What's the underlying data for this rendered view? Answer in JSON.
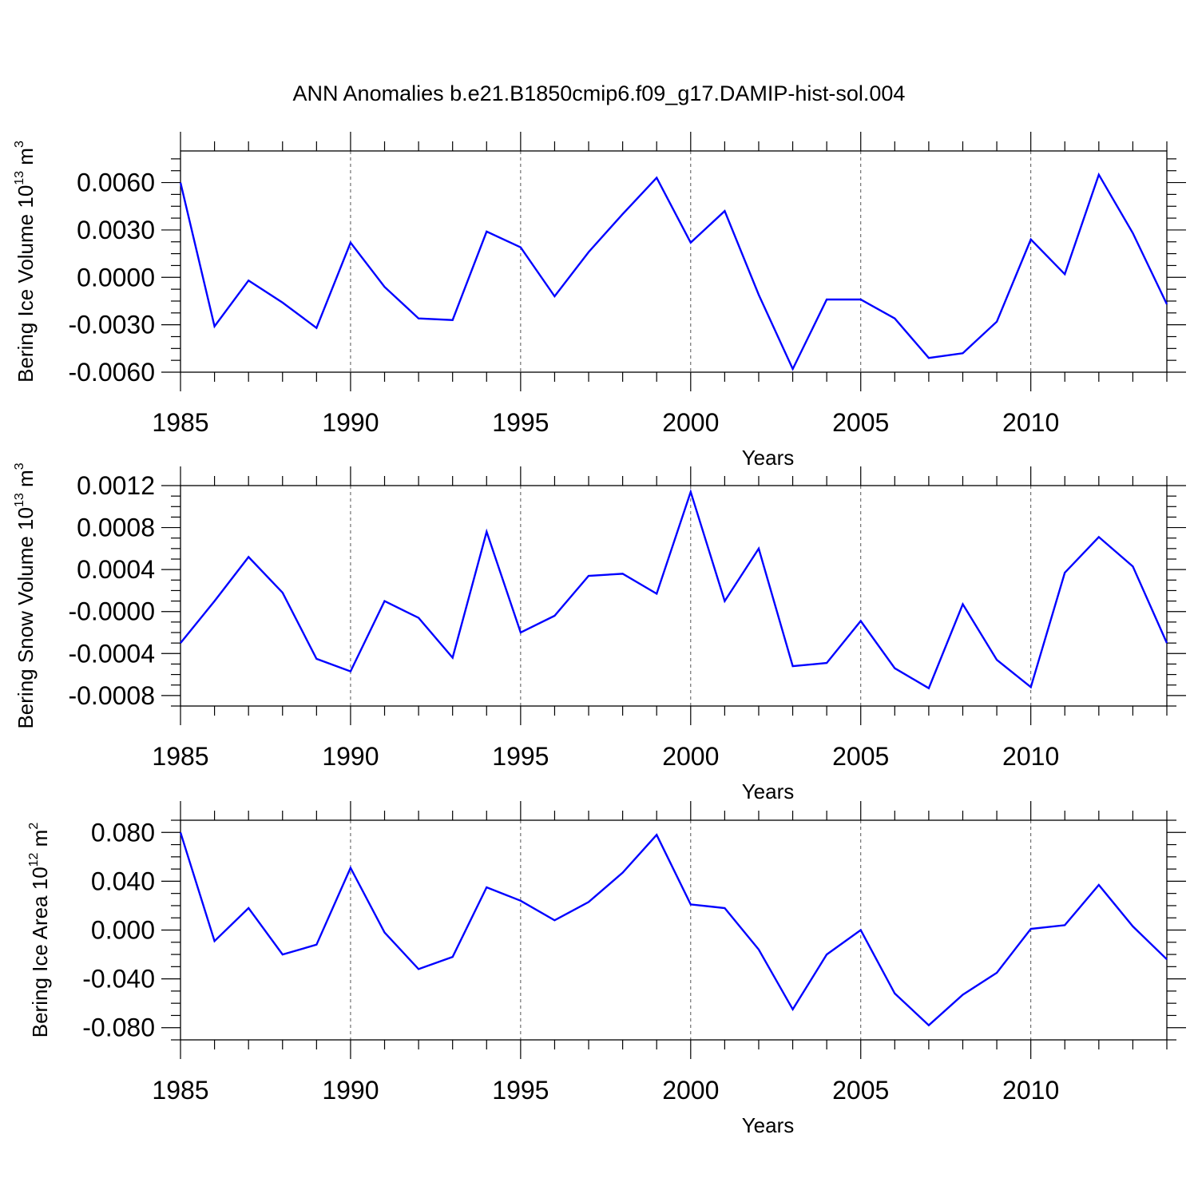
{
  "figure": {
    "title": "ANN Anomalies b.e21.B1850cmip6.f09_g17.DAMIP-hist-sol.004",
    "line_color": "#0000ff"
  },
  "chart_data": [
    {
      "type": "line",
      "xlabel": "Years",
      "ylabel": {
        "base": "Bering Ice Volume 10",
        "exp": "13",
        "unit": " m",
        "unit_exp": "3"
      },
      "xlim": [
        1985,
        2014
      ],
      "ylim": [
        -0.006,
        0.008
      ],
      "grid": "vertical dashed at labeled years",
      "x_ticks": [
        1985,
        1990,
        1995,
        2000,
        2005,
        2010
      ],
      "x_tick_labels": [
        "1985",
        "1990",
        "1995",
        "2000",
        "2005",
        "2010"
      ],
      "y_ticks": [
        0.006,
        0.003,
        0.0,
        -0.003,
        -0.006
      ],
      "y_tick_labels": [
        "0.0060",
        "0.0030",
        "0.0000",
        "-0.0030",
        "-0.0060"
      ],
      "x": [
        1985,
        1986,
        1987,
        1988,
        1989,
        1990,
        1991,
        1992,
        1993,
        1994,
        1995,
        1996,
        1997,
        1998,
        1999,
        2000,
        2001,
        2002,
        2003,
        2004,
        2005,
        2006,
        2007,
        2008,
        2009,
        2010,
        2011,
        2012,
        2013,
        2014
      ],
      "values": [
        0.006,
        -0.0031,
        -0.0002,
        -0.0016,
        -0.0032,
        0.0022,
        -0.0006,
        -0.0026,
        -0.0027,
        0.0029,
        0.0019,
        -0.0012,
        0.0016,
        0.004,
        0.0063,
        0.0022,
        0.0042,
        -0.0011,
        -0.0058,
        -0.0014,
        -0.0014,
        -0.0026,
        -0.0051,
        -0.0048,
        -0.0028,
        0.0024,
        0.0002,
        0.0065,
        0.0028,
        -0.0017
      ]
    },
    {
      "type": "line",
      "xlabel": "Years",
      "ylabel": {
        "base": "Bering Snow Volume 10",
        "exp": "13",
        "unit": " m",
        "unit_exp": "3"
      },
      "xlim": [
        1985,
        2014
      ],
      "ylim": [
        -0.0009,
        0.0012
      ],
      "grid": "vertical dashed at labeled years",
      "x_ticks": [
        1985,
        1990,
        1995,
        2000,
        2005,
        2010
      ],
      "x_tick_labels": [
        "1985",
        "1990",
        "1995",
        "2000",
        "2005",
        "2010"
      ],
      "y_ticks": [
        0.0012,
        0.0008,
        0.0004,
        0.0,
        -0.0004,
        -0.0008
      ],
      "y_tick_labels": [
        "0.0012",
        "0.0008",
        "0.0004",
        "-0.0000",
        "-0.0004",
        "-0.0008"
      ],
      "x": [
        1985,
        1986,
        1987,
        1988,
        1989,
        1990,
        1991,
        1992,
        1993,
        1994,
        1995,
        1996,
        1997,
        1998,
        1999,
        2000,
        2001,
        2002,
        2003,
        2004,
        2005,
        2006,
        2007,
        2008,
        2009,
        2010,
        2011,
        2012,
        2013,
        2014
      ],
      "values": [
        -0.0003,
        0.0001,
        0.00052,
        0.00018,
        -0.00045,
        -0.00057,
        0.0001,
        -6e-05,
        -0.00044,
        0.00076,
        -0.0002,
        -4e-05,
        0.00034,
        0.00036,
        0.00017,
        0.00114,
        0.0001,
        0.0006,
        -0.00052,
        -0.00049,
        -9e-05,
        -0.00054,
        -0.00073,
        7e-05,
        -0.00046,
        -0.00072,
        0.00037,
        0.00071,
        0.00043,
        -0.0003
      ]
    },
    {
      "type": "line",
      "xlabel": "Years",
      "ylabel": {
        "base": "Bering Ice Area 10",
        "exp": "12",
        "unit": " m",
        "unit_exp": "2"
      },
      "xlim": [
        1985,
        2014
      ],
      "ylim": [
        -0.09,
        0.09
      ],
      "grid": "vertical dashed at labeled years",
      "x_ticks": [
        1985,
        1990,
        1995,
        2000,
        2005,
        2010
      ],
      "x_tick_labels": [
        "1985",
        "1990",
        "1995",
        "2000",
        "2005",
        "2010"
      ],
      "y_ticks": [
        0.08,
        0.04,
        0.0,
        -0.04,
        -0.08
      ],
      "y_tick_labels": [
        "0.080",
        "0.040",
        "0.000",
        "-0.040",
        "-0.080"
      ],
      "x": [
        1985,
        1986,
        1987,
        1988,
        1989,
        1990,
        1991,
        1992,
        1993,
        1994,
        1995,
        1996,
        1997,
        1998,
        1999,
        2000,
        2001,
        2002,
        2003,
        2004,
        2005,
        2006,
        2007,
        2008,
        2009,
        2010,
        2011,
        2012,
        2013,
        2014
      ],
      "values": [
        0.08,
        -0.009,
        0.018,
        -0.02,
        -0.012,
        0.051,
        -0.002,
        -0.032,
        -0.022,
        0.035,
        0.024,
        0.008,
        0.023,
        0.047,
        0.078,
        0.021,
        0.018,
        -0.016,
        -0.065,
        -0.02,
        0.0,
        -0.052,
        -0.078,
        -0.053,
        -0.035,
        0.001,
        0.004,
        0.037,
        0.003,
        -0.024
      ]
    }
  ]
}
